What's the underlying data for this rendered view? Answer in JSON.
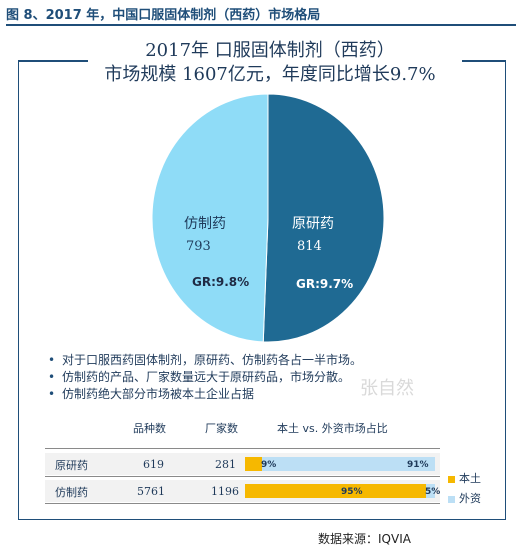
{
  "figure_title": "图 8、2017 年，中国口服固体制剂（西药）市场格局",
  "source": "数据来源：IQVIA",
  "watermark": "张自然",
  "colors": {
    "brand": "#1f4e79",
    "originator": "#1f6a93",
    "generic": "#8fdcf7",
    "domestic": "#f6b800",
    "foreign": "#bcdff5"
  },
  "chart_data": [
    {
      "type": "pie",
      "title": "2017年 口服固体制剂（西药）",
      "subtitle": "市场规模 1607亿元，年度同比增长9.7%",
      "slices": [
        {
          "name": "原研药",
          "value": 814,
          "growth_label": "GR:9.7%"
        },
        {
          "name": "仿制药",
          "value": 793,
          "growth_label": "GR:9.8%"
        }
      ]
    },
    {
      "type": "table",
      "columns": [
        "",
        "品种数",
        "厂家数",
        "本土 vs. 外资市场占比"
      ],
      "rows": [
        {
          "name": "原研药",
          "varieties": "619",
          "manufacturers": "281",
          "domestic_pct": 9,
          "foreign_pct": 91,
          "domestic_label": "9%",
          "foreign_label": "91%"
        },
        {
          "name": "仿制药",
          "varieties": "5761",
          "manufacturers": "1196",
          "domestic_pct": 95,
          "foreign_pct": 5,
          "domestic_label": "95%",
          "foreign_label": "5%"
        }
      ],
      "legend": [
        "本土",
        "外资"
      ]
    }
  ],
  "bullets": [
    "对于口服西药固体制剂，原研药、仿制药各占一半市场。",
    "仿制药的产品、厂家数量远大于原研药品，市场分散。",
    "仿制药绝大部分市场被本土企业占据"
  ]
}
